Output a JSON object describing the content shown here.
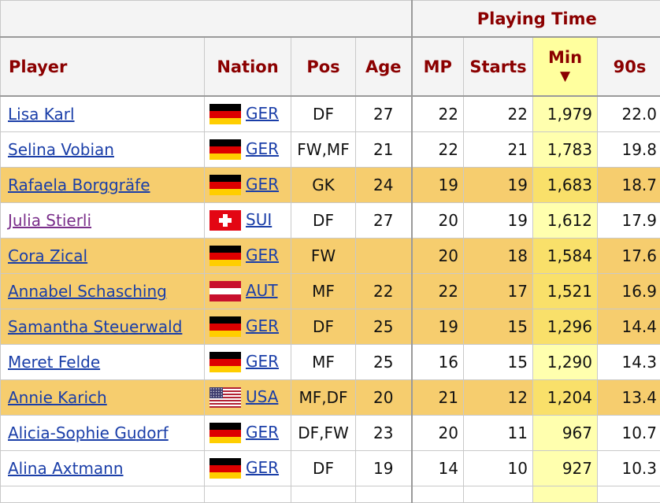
{
  "header": {
    "group_label": "Playing Time",
    "columns": {
      "player": "Player",
      "nation": "Nation",
      "pos": "Pos",
      "age": "Age",
      "mp": "MP",
      "starts": "Starts",
      "min": "Min",
      "min_sort_indicator": "▼",
      "nineties": "90s"
    }
  },
  "rows": [
    {
      "player": "Lisa Karl",
      "nation": "GER",
      "flag": "germany-flag-icon",
      "pos": "DF",
      "age": "27",
      "mp": "22",
      "starts": "22",
      "min": "1,979",
      "nineties": "22.0",
      "highlighted": false
    },
    {
      "player": "Selina Vobian",
      "nation": "GER",
      "flag": "germany-flag-icon",
      "pos": "FW,MF",
      "age": "21",
      "mp": "22",
      "starts": "21",
      "min": "1,783",
      "nineties": "19.8",
      "highlighted": false
    },
    {
      "player": "Rafaela Borggräfe",
      "nation": "GER",
      "flag": "germany-flag-icon",
      "pos": "GK",
      "age": "24",
      "mp": "19",
      "starts": "19",
      "min": "1,683",
      "nineties": "18.7",
      "highlighted": true
    },
    {
      "player": "Julia Stierli",
      "nation": "SUI",
      "flag": "switzerland-flag-icon",
      "pos": "DF",
      "age": "27",
      "mp": "20",
      "starts": "19",
      "min": "1,612",
      "nineties": "17.9",
      "highlighted": false,
      "visited": true
    },
    {
      "player": "Cora Zical",
      "nation": "GER",
      "flag": "germany-flag-icon",
      "pos": "FW",
      "age": "",
      "mp": "20",
      "starts": "18",
      "min": "1,584",
      "nineties": "17.6",
      "highlighted": true
    },
    {
      "player": "Annabel Schasching",
      "nation": "AUT",
      "flag": "austria-flag-icon",
      "pos": "MF",
      "age": "22",
      "mp": "22",
      "starts": "17",
      "min": "1,521",
      "nineties": "16.9",
      "highlighted": true
    },
    {
      "player": "Samantha Steuerwald",
      "nation": "GER",
      "flag": "germany-flag-icon",
      "pos": "DF",
      "age": "25",
      "mp": "19",
      "starts": "15",
      "min": "1,296",
      "nineties": "14.4",
      "highlighted": true
    },
    {
      "player": "Meret Felde",
      "nation": "GER",
      "flag": "germany-flag-icon",
      "pos": "MF",
      "age": "25",
      "mp": "16",
      "starts": "15",
      "min": "1,290",
      "nineties": "14.3",
      "highlighted": false
    },
    {
      "player": "Annie Karich",
      "nation": "USA",
      "flag": "usa-flag-icon",
      "pos": "MF,DF",
      "age": "20",
      "mp": "21",
      "starts": "12",
      "min": "1,204",
      "nineties": "13.4",
      "highlighted": true
    },
    {
      "player": "Alicia-Sophie Gudorf",
      "nation": "GER",
      "flag": "germany-flag-icon",
      "pos": "DF,FW",
      "age": "23",
      "mp": "20",
      "starts": "11",
      "min": "967",
      "nineties": "10.7",
      "highlighted": false
    },
    {
      "player": "Alina Axtmann",
      "nation": "GER",
      "flag": "germany-flag-icon",
      "pos": "DF",
      "age": "19",
      "mp": "14",
      "starts": "10",
      "min": "927",
      "nineties": "10.3",
      "highlighted": false
    }
  ],
  "colors": {
    "header_text": "#8b0000",
    "row_highlight": "#f6cd6e",
    "sorted_column": "#ffffae",
    "link": "#1a3ea8",
    "visited_link": "#7a2e8a"
  }
}
